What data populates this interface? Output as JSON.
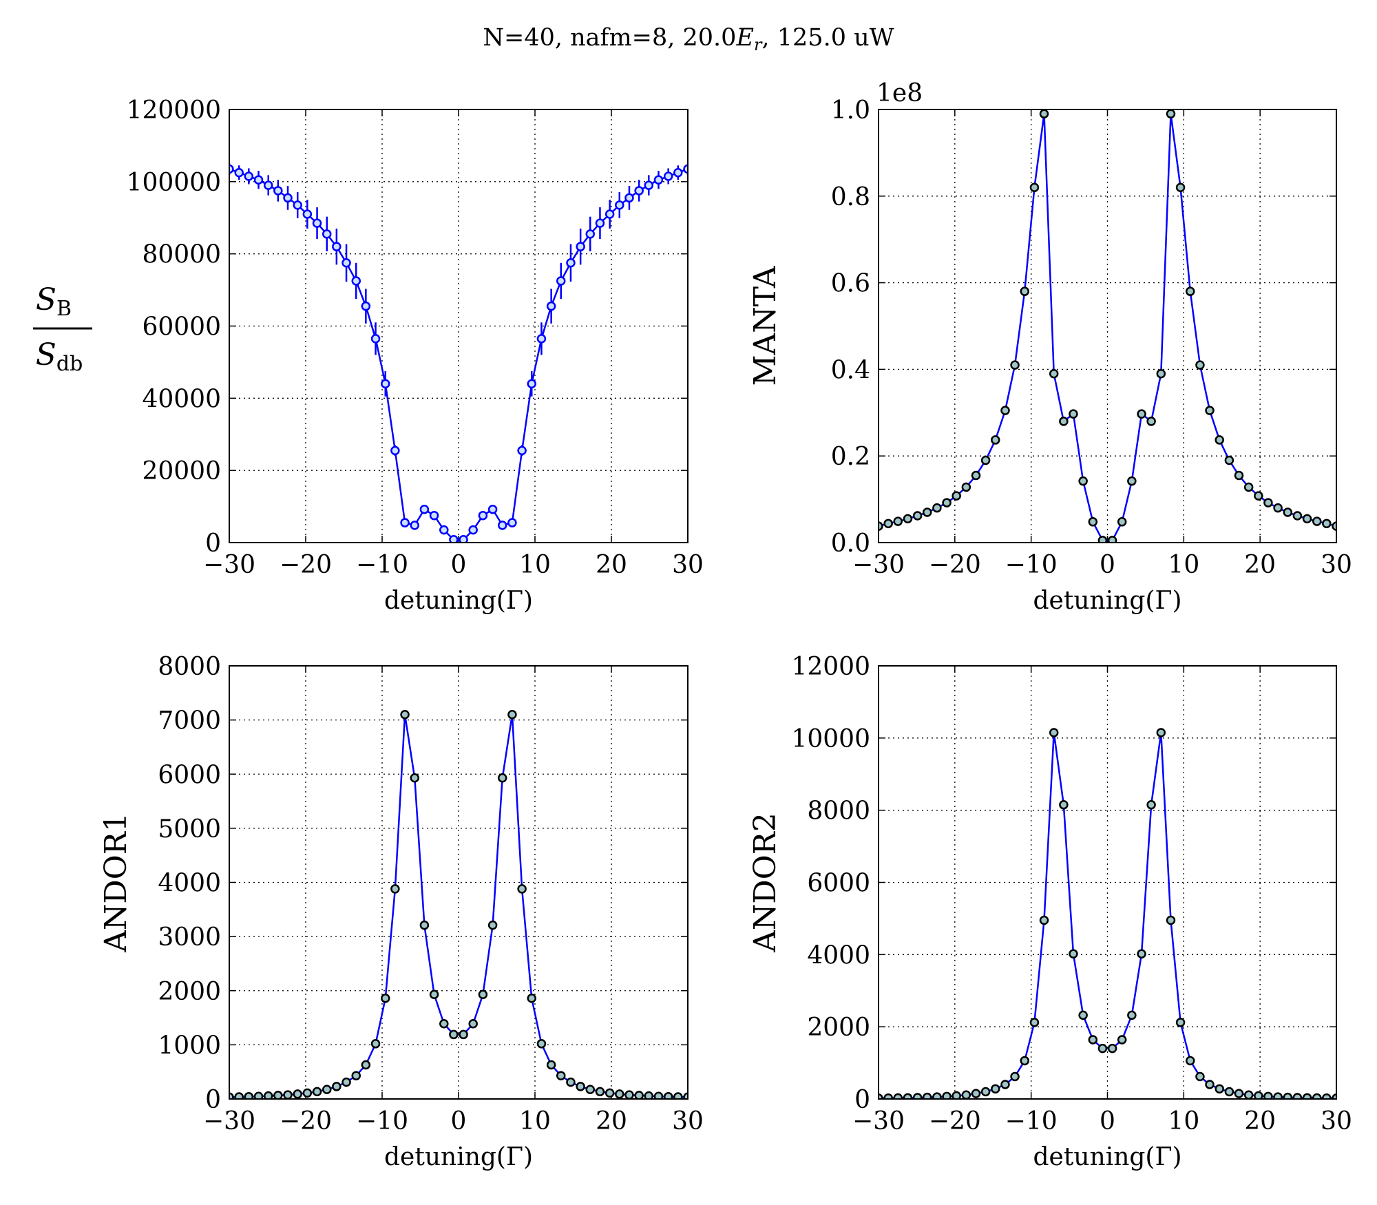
{
  "chart_data": [
    {
      "type": "line",
      "title": [
        "N=40,  nafm=8,  20.0",
        "E",
        "r",
        ",  125.0 uW"
      ],
      "ylabel": {
        "numerator": "S",
        "numerator_sub": "B",
        "denominator": "S",
        "denominator_sub": "db"
      },
      "xlabel": "detuning(Γ)",
      "x": [
        -30,
        -28.72,
        -27.45,
        -26.17,
        -24.89,
        -23.62,
        -22.34,
        -21.06,
        -19.79,
        -18.51,
        -17.23,
        -15.96,
        -14.68,
        -13.4,
        -12.13,
        -10.85,
        -9.57,
        -8.3,
        -7.02,
        -5.74,
        -4.47,
        -3.19,
        -1.91,
        -0.64,
        0.64,
        1.91,
        3.19,
        4.47,
        5.74,
        7.02,
        8.3,
        9.57,
        10.85,
        12.13,
        13.4,
        14.68,
        15.96,
        17.23,
        18.51,
        19.79,
        21.06,
        22.34,
        23.62,
        24.89,
        26.17,
        27.45,
        28.72,
        30
      ],
      "series": [
        {
          "color": "#0000ff",
          "marker_face": "#cce0ff",
          "marker_edge": "#0000ff",
          "values": [
            103500,
            102500,
            101500,
            100500,
            99000,
            97500,
            95500,
            93500,
            91000,
            88500,
            85500,
            82000,
            77500,
            72500,
            65500,
            56500,
            44000,
            25500,
            5500,
            4800,
            9200,
            7500,
            3500,
            800,
            800,
            3500,
            7500,
            9200,
            4800,
            5500,
            25500,
            44000,
            56500,
            65500,
            72500,
            77500,
            82000,
            85500,
            88500,
            91000,
            93500,
            95500,
            97500,
            99000,
            100500,
            101500,
            102500,
            103500
          ],
          "errors": [
            1800,
            2000,
            2200,
            2500,
            2800,
            3000,
            3300,
            3600,
            4000,
            4400,
            4800,
            5000,
            5200,
            5000,
            4800,
            4500,
            3500,
            1500,
            800,
            800,
            1200,
            1100,
            800,
            500,
            500,
            800,
            1100,
            1200,
            800,
            800,
            1500,
            3500,
            4500,
            4800,
            5000,
            5200,
            5000,
            4800,
            4400,
            4000,
            3600,
            3300,
            3000,
            2800,
            2500,
            2200,
            2000,
            1800
          ]
        }
      ],
      "xlim": [
        -30,
        30
      ],
      "xticks": [
        {
          "value": -30,
          "label": "−30"
        },
        {
          "value": -20,
          "label": "−20"
        },
        {
          "value": -10,
          "label": "−10"
        },
        0,
        10,
        20,
        30
      ],
      "ylim": [
        0,
        120000
      ],
      "yticks": [
        0,
        20000,
        40000,
        60000,
        80000,
        100000,
        120000
      ],
      "grid": true
    },
    {
      "type": "line",
      "ylabel": "MANTA",
      "xlabel": "detuning(Γ)",
      "offset_text": "1e8",
      "x": [
        -30,
        -28.72,
        -27.45,
        -26.17,
        -24.89,
        -23.62,
        -22.34,
        -21.06,
        -19.79,
        -18.51,
        -17.23,
        -15.96,
        -14.68,
        -13.4,
        -12.13,
        -10.85,
        -9.57,
        -8.3,
        -7.02,
        -5.74,
        -4.47,
        -3.19,
        -1.91,
        -0.64,
        0.64,
        1.91,
        3.19,
        4.47,
        5.74,
        7.02,
        8.3,
        9.57,
        10.85,
        12.13,
        13.4,
        14.68,
        15.96,
        17.23,
        18.51,
        19.79,
        21.06,
        22.34,
        23.62,
        24.89,
        26.17,
        27.45,
        28.72,
        30
      ],
      "series": [
        {
          "color": "#0000ff",
          "marker_face": "#9fc5c5",
          "marker_edge": "#000000",
          "values": [
            0.038,
            0.044,
            0.049,
            0.055,
            0.062,
            0.07,
            0.08,
            0.092,
            0.108,
            0.128,
            0.155,
            0.19,
            0.237,
            0.305,
            0.41,
            0.58,
            0.82,
            0.99,
            0.39,
            0.28,
            0.297,
            0.142,
            0.048,
            0.005,
            0.005,
            0.048,
            0.142,
            0.297,
            0.28,
            0.39,
            0.99,
            0.82,
            0.58,
            0.41,
            0.305,
            0.237,
            0.19,
            0.155,
            0.128,
            0.108,
            0.092,
            0.08,
            0.07,
            0.062,
            0.055,
            0.049,
            0.044,
            0.038
          ]
        }
      ],
      "xlim": [
        -30,
        30
      ],
      "xticks": [
        {
          "value": -30,
          "label": "−30"
        },
        {
          "value": -20,
          "label": "−20"
        },
        {
          "value": -10,
          "label": "−10"
        },
        0,
        10,
        20,
        30
      ],
      "ylim": [
        0,
        1
      ],
      "yticks": [
        {
          "value": 0,
          "label": "0.0"
        },
        0.2,
        0.4,
        0.6,
        0.8,
        {
          "value": 1,
          "label": "1.0"
        }
      ],
      "grid": true
    },
    {
      "type": "line",
      "ylabel": "ANDOR1",
      "xlabel": "detuning(Γ)",
      "x": [
        -30,
        -28.72,
        -27.45,
        -26.17,
        -24.89,
        -23.62,
        -22.34,
        -21.06,
        -19.79,
        -18.51,
        -17.23,
        -15.96,
        -14.68,
        -13.4,
        -12.13,
        -10.85,
        -9.57,
        -8.3,
        -7.02,
        -5.74,
        -4.47,
        -3.19,
        -1.91,
        -0.64,
        0.64,
        1.91,
        3.19,
        4.47,
        5.74,
        7.02,
        8.3,
        9.57,
        10.85,
        12.13,
        13.4,
        14.68,
        15.96,
        17.23,
        18.51,
        19.79,
        21.06,
        22.34,
        23.62,
        24.89,
        26.17,
        27.45,
        28.72,
        30
      ],
      "series": [
        {
          "color": "#0000ff",
          "marker_face": "#9fc5c5",
          "marker_edge": "#000000",
          "values": [
            35,
            38,
            42,
            48,
            55,
            65,
            75,
            90,
            110,
            135,
            175,
            230,
            310,
            430,
            630,
            1020,
            1860,
            3880,
            7100,
            5930,
            3210,
            1930,
            1390,
            1190,
            1190,
            1390,
            1930,
            3210,
            5930,
            7100,
            3880,
            1860,
            1020,
            630,
            430,
            310,
            230,
            175,
            135,
            110,
            90,
            75,
            65,
            55,
            48,
            42,
            38,
            35
          ]
        }
      ],
      "xlim": [
        -30,
        30
      ],
      "xticks": [
        {
          "value": -30,
          "label": "−30"
        },
        {
          "value": -20,
          "label": "−20"
        },
        {
          "value": -10,
          "label": "−10"
        },
        0,
        10,
        20,
        30
      ],
      "ylim": [
        0,
        8000
      ],
      "yticks": [
        0,
        1000,
        2000,
        3000,
        4000,
        5000,
        6000,
        7000,
        8000
      ],
      "grid": true
    },
    {
      "type": "line",
      "ylabel": "ANDOR2",
      "xlabel": "detuning(Γ)",
      "x": [
        -30,
        -28.72,
        -27.45,
        -26.17,
        -24.89,
        -23.62,
        -22.34,
        -21.06,
        -19.79,
        -18.51,
        -17.23,
        -15.96,
        -14.68,
        -13.4,
        -12.13,
        -10.85,
        -9.57,
        -8.3,
        -7.02,
        -5.74,
        -4.47,
        -3.19,
        -1.91,
        -0.64,
        0.64,
        1.91,
        3.19,
        4.47,
        5.74,
        7.02,
        8.3,
        9.57,
        10.85,
        12.13,
        13.4,
        14.68,
        15.96,
        17.23,
        18.51,
        19.79,
        21.06,
        22.34,
        23.62,
        24.89,
        26.17,
        27.45,
        28.72,
        30
      ],
      "series": [
        {
          "color": "#0000ff",
          "marker_face": "#9fc5c5",
          "marker_edge": "#000000",
          "values": [
            22,
            25,
            28,
            32,
            38,
            45,
            55,
            70,
            85,
            110,
            150,
            200,
            280,
            400,
            620,
            1060,
            2120,
            4950,
            10150,
            8150,
            4020,
            2320,
            1640,
            1400,
            1400,
            1640,
            2320,
            4020,
            8150,
            10150,
            4950,
            2120,
            1060,
            620,
            400,
            280,
            200,
            150,
            110,
            85,
            70,
            55,
            45,
            38,
            32,
            28,
            25,
            22
          ]
        }
      ],
      "xlim": [
        -30,
        30
      ],
      "xticks": [
        {
          "value": -30,
          "label": "−30"
        },
        {
          "value": -20,
          "label": "−20"
        },
        {
          "value": -10,
          "label": "−10"
        },
        0,
        10,
        20,
        30
      ],
      "ylim": [
        0,
        12000
      ],
      "yticks": [
        0,
        2000,
        4000,
        6000,
        8000,
        10000,
        12000
      ],
      "grid": true
    }
  ]
}
